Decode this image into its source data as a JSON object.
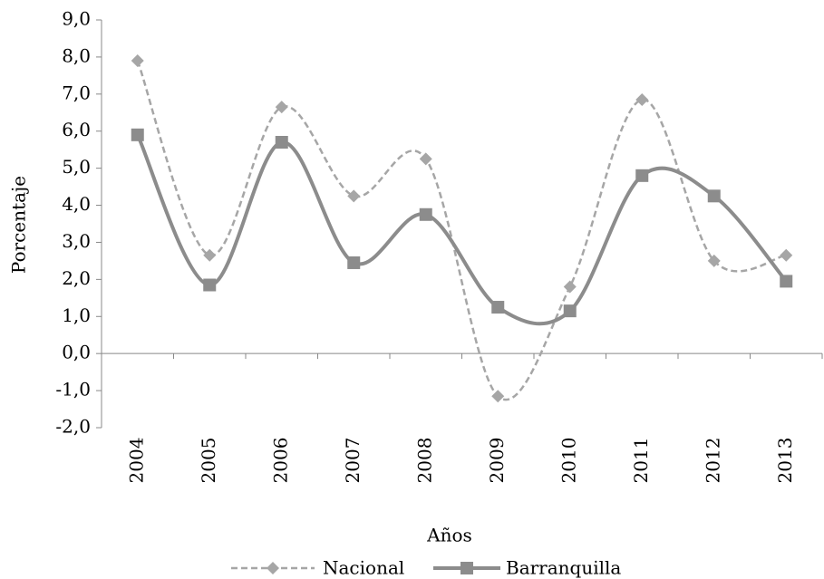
{
  "chart_data": {
    "type": "line",
    "categories": [
      "2004",
      "2005",
      "2006",
      "2007",
      "2008",
      "2009",
      "2010",
      "2011",
      "2012",
      "2013"
    ],
    "series": [
      {
        "name": "Nacional",
        "color": "#a6a6a6",
        "values": [
          7.9,
          2.65,
          6.65,
          4.25,
          5.25,
          -1.15,
          1.8,
          6.85,
          2.5,
          2.65
        ]
      },
      {
        "name": "Barranquilla",
        "color": "#8c8c8c",
        "values": [
          5.9,
          1.85,
          5.7,
          2.45,
          3.75,
          1.25,
          1.15,
          4.8,
          4.25,
          1.95
        ]
      }
    ],
    "xlabel": "Años",
    "ylabel": "Porcentaje",
    "ylim": [
      -2,
      9
    ],
    "yticks": [
      {
        "value": -2,
        "label": "-2,0"
      },
      {
        "value": -1,
        "label": "-1,0"
      },
      {
        "value": 0,
        "label": "0,0"
      },
      {
        "value": 1,
        "label": "1,0"
      },
      {
        "value": 2,
        "label": "2,0"
      },
      {
        "value": 3,
        "label": "3,0"
      },
      {
        "value": 4,
        "label": "4,0"
      },
      {
        "value": 5,
        "label": "5,0"
      },
      {
        "value": 6,
        "label": "6,0"
      },
      {
        "value": 7,
        "label": "7,0"
      },
      {
        "value": 8,
        "label": "8,0"
      },
      {
        "value": 9,
        "label": "9,0"
      }
    ],
    "legend": "bottom"
  }
}
